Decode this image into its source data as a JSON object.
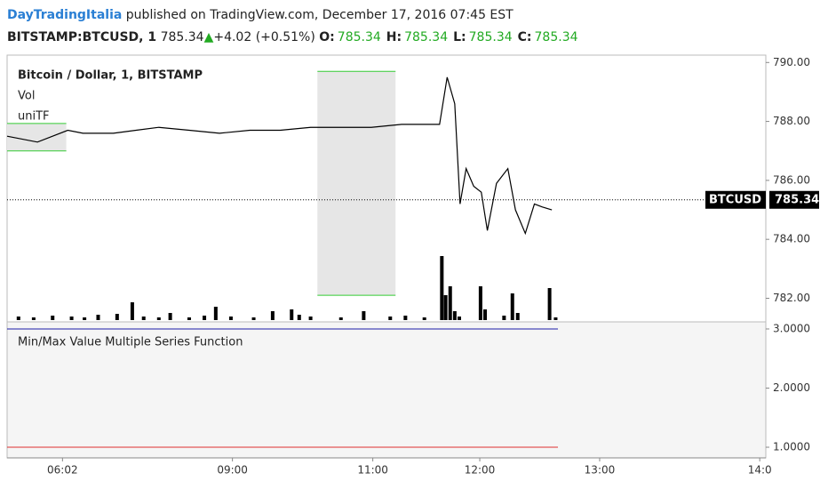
{
  "header": {
    "author": "DayTradingItalia",
    "text": "published on TradingView.com, December 17, 2016 07:45 EST",
    "symbol": "BITSTAMP:BTCUSD, 1",
    "price": 785.34,
    "arrow": "▲",
    "change": "+4.02 (+0.51%)",
    "ohlc": [
      {
        "label": "O:",
        "value": 785.34
      },
      {
        "label": "H:",
        "value": 785.34
      },
      {
        "label": "L:",
        "value": 785.34
      },
      {
        "label": "C:",
        "value": 785.34
      }
    ]
  },
  "chart_data": {
    "type": "line",
    "title": "Bitcoin / Dollar, 1, BITSTAMP",
    "indicators": [
      "Vol",
      "uniTF"
    ],
    "xlim": [
      0,
      100
    ],
    "xticks": [
      {
        "value": 7.3,
        "label": "06:02"
      },
      {
        "value": 29.7,
        "label": "09:00"
      },
      {
        "value": 48.2,
        "label": "11:00"
      },
      {
        "value": 62.3,
        "label": "12:00"
      },
      {
        "value": 78.1,
        "label": "13:00"
      },
      {
        "value": 99.2,
        "label": "14:0"
      }
    ],
    "ylim": [
      781.2,
      790.25
    ],
    "yticks": [
      {
        "value": 782,
        "label": "782.00"
      },
      {
        "value": 784,
        "label": "784.00"
      },
      {
        "value": 786,
        "label": "786.00"
      },
      {
        "value": 788,
        "label": "788.00"
      },
      {
        "value": 790,
        "label": "790.00"
      }
    ],
    "series": [
      {
        "name": "BTCUSD",
        "color": "#000000",
        "x": [
          0,
          4,
          8,
          10,
          14,
          17,
          20,
          24,
          28,
          32,
          36,
          40,
          44,
          48,
          52,
          57,
          58,
          59,
          59.7,
          60.5,
          61.5,
          62.5,
          63.3,
          64.5,
          66,
          67,
          68.3,
          69.5,
          70.5,
          71.8
        ],
        "values": [
          787.5,
          787.3,
          787.7,
          787.6,
          787.6,
          787.7,
          787.8,
          787.7,
          787.6,
          787.7,
          787.7,
          787.8,
          787.8,
          787.8,
          787.9,
          787.9,
          789.5,
          788.6,
          785.2,
          786.4,
          785.8,
          785.6,
          784.3,
          785.9,
          786.4,
          785.0,
          784.2,
          785.2,
          785.1,
          785.0
        ]
      }
    ],
    "last_price": 785.34,
    "ranges": [
      {
        "x": [
          0,
          7.8
        ],
        "high": 787.93,
        "low": 787.0,
        "fill": "#e6e6e6",
        "edge": "#33cc33"
      },
      {
        "x": [
          40.9,
          51.2
        ],
        "high": 789.7,
        "low": 782.1,
        "fill": "#e6e6e6",
        "edge": "#33cc33"
      }
    ],
    "volume": {
      "color": "#000000",
      "ylim": [
        0,
        100
      ],
      "x": [
        1.5,
        3.5,
        6,
        8.5,
        10.2,
        12,
        14.5,
        16.5,
        18,
        20,
        21.5,
        24,
        26,
        27.5,
        29.5,
        32.5,
        35,
        37.5,
        38.5,
        40,
        44,
        47,
        50.5,
        52.5,
        55,
        57.3,
        57.8,
        58.4,
        59,
        59.6,
        62.4,
        63,
        65.5,
        66.6,
        67.3,
        71.5,
        72.3
      ],
      "values": [
        4,
        3,
        5,
        4,
        3,
        6,
        7,
        20,
        4,
        3,
        8,
        3,
        5,
        15,
        4,
        3,
        10,
        12,
        6,
        4,
        3,
        10,
        4,
        5,
        3,
        72,
        28,
        38,
        10,
        4,
        38,
        12,
        5,
        30,
        8,
        36,
        3
      ]
    },
    "lower_pane": {
      "title": "Min/Max Value Multiple Series Function",
      "ylim": [
        0.82,
        3.12
      ],
      "yticks": [
        {
          "value": 1,
          "label": "1.0000"
        },
        {
          "value": 2,
          "label": "2.0000"
        },
        {
          "value": 3,
          "label": "3.0000"
        }
      ],
      "lines": [
        {
          "value": 3,
          "color": "#1a1aa6",
          "x_end": 72.6
        },
        {
          "value": 1,
          "color": "#e03030",
          "x_end": 72.6
        }
      ]
    }
  }
}
